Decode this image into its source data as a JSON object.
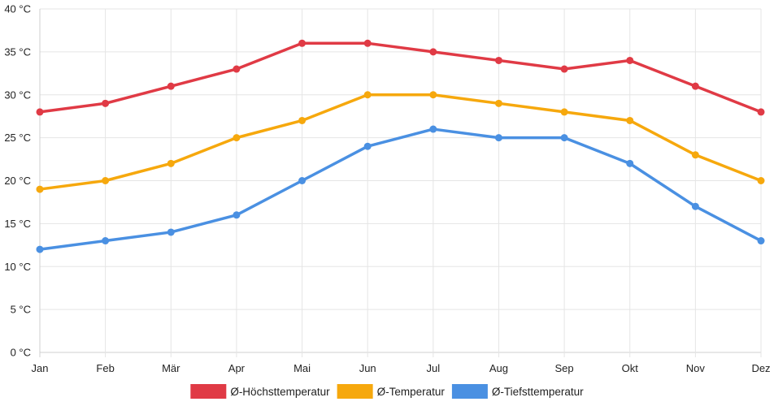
{
  "chart_data": {
    "type": "line",
    "title": "",
    "xlabel": "",
    "ylabel": "",
    "categories": [
      "Jan",
      "Feb",
      "Mär",
      "Apr",
      "Mai",
      "Jun",
      "Jul",
      "Aug",
      "Sep",
      "Okt",
      "Nov",
      "Dez"
    ],
    "ylim": [
      0,
      40
    ],
    "y_ticks": [
      "0 °C",
      "5 °C",
      "10 °C",
      "15 °C",
      "20 °C",
      "25 °C",
      "30 °C",
      "35 °C",
      "40 °C"
    ],
    "grid": true,
    "legend_position": "bottom",
    "series": [
      {
        "name": "Ø-Höchsttemperatur",
        "color": "#e03a45",
        "values": [
          28,
          29,
          31,
          33,
          36,
          36,
          35,
          34,
          33,
          34,
          31,
          28
        ]
      },
      {
        "name": "Ø-Temperatur",
        "color": "#f6a80d",
        "values": [
          19,
          20,
          22,
          25,
          27,
          30,
          30,
          29,
          28,
          27,
          23,
          20
        ]
      },
      {
        "name": "Ø-Tiefsttemperatur",
        "color": "#4a90e2",
        "values": [
          12,
          13,
          14,
          16,
          20,
          24,
          26,
          25,
          25,
          22,
          17,
          13
        ]
      }
    ]
  }
}
